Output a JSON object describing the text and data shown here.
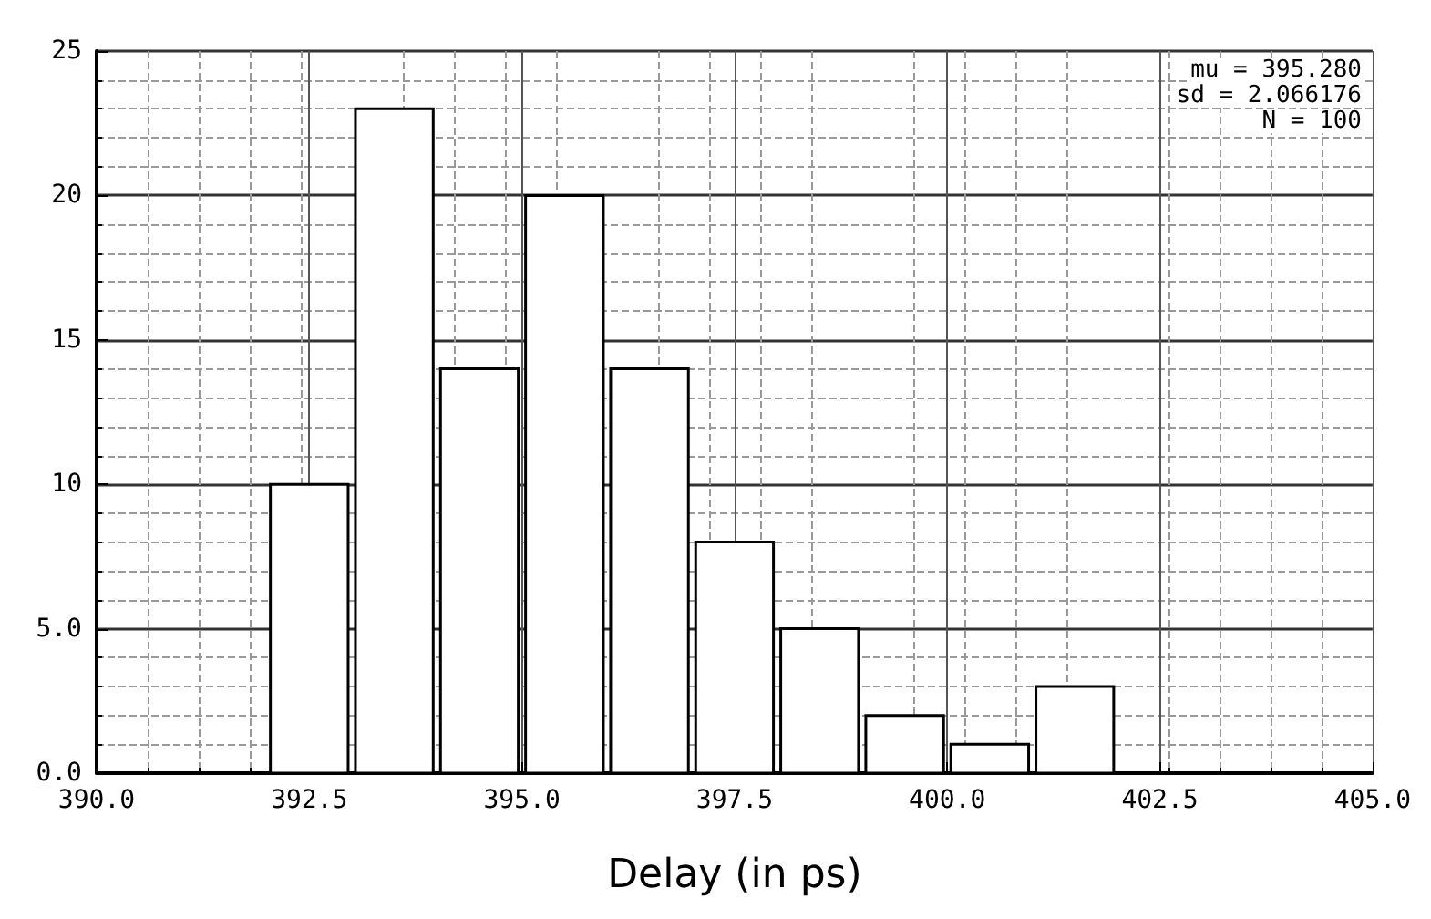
{
  "chart_data": {
    "type": "histogram",
    "xlabel": "Delay (in ps)",
    "bins": [
      392,
      393,
      394,
      395,
      396,
      397,
      398,
      399,
      400,
      401,
      402
    ],
    "values": [
      10,
      23,
      14,
      20,
      14,
      8,
      5,
      2,
      1,
      3
    ],
    "color": "#ffffff",
    "xlim": [
      390,
      405
    ],
    "xticks": [
      {
        "value": 390,
        "label": "390.0"
      },
      {
        "value": 392.5,
        "label": "392.5"
      },
      {
        "value": 395,
        "label": "395.0"
      },
      {
        "value": 397.5,
        "label": "397.5"
      },
      {
        "value": 400,
        "label": "400.0"
      },
      {
        "value": 402.5,
        "label": "402.5"
      },
      {
        "value": 405,
        "label": "405.0"
      }
    ],
    "ylim": [
      0,
      25
    ],
    "yticks": [
      {
        "value": 0,
        "label": "0.0"
      },
      {
        "value": 5,
        "label": "5.0"
      },
      10,
      15,
      20,
      25
    ],
    "grid": true,
    "annotations": [
      "mu = 395.280",
      "sd = 2.066176",
      "N = 100"
    ]
  }
}
